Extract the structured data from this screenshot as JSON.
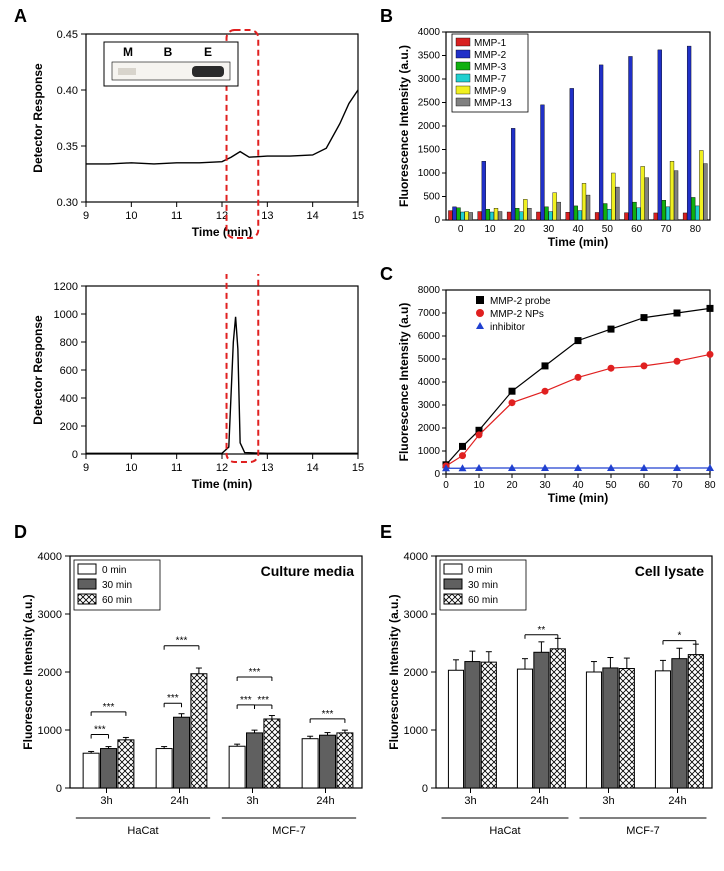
{
  "labels": {
    "A": "A",
    "B": "B",
    "C": "C",
    "D": "D",
    "E": "E"
  },
  "panelA_top": {
    "type": "line",
    "xlabel": "Time (min)",
    "ylabel": "Detector Response",
    "xlim": [
      9,
      15
    ],
    "xtick_step": 1,
    "ylim": [
      0.3,
      0.45
    ],
    "ytick_step": 0.05,
    "line_color": "#000000",
    "data_x": [
      9,
      9.5,
      10,
      10.5,
      11,
      11.5,
      12,
      12.2,
      12.4,
      12.6,
      13,
      13.5,
      14,
      14.3,
      14.6,
      14.8,
      15
    ],
    "data_y": [
      0.334,
      0.334,
      0.335,
      0.334,
      0.335,
      0.335,
      0.336,
      0.34,
      0.345,
      0.34,
      0.341,
      0.341,
      0.342,
      0.348,
      0.37,
      0.388,
      0.4
    ],
    "inset_letters": [
      "M",
      "B",
      "E"
    ],
    "highlight_x": [
      12.1,
      12.8
    ],
    "highlight_color": "#e02020"
  },
  "panelA_bottom": {
    "type": "line",
    "xlabel": "Time (min)",
    "ylabel": "Detector Response",
    "xlim": [
      9,
      15
    ],
    "xtick_step": 1,
    "ylim": [
      0,
      1200
    ],
    "ytick_step": 200,
    "line_color": "#000000",
    "data_x": [
      9,
      10,
      11,
      12,
      12.15,
      12.25,
      12.3,
      12.35,
      12.4,
      12.5,
      13,
      14,
      15
    ],
    "data_y": [
      5,
      5,
      5,
      5,
      50,
      800,
      980,
      750,
      80,
      10,
      5,
      5,
      5
    ]
  },
  "panelB": {
    "type": "bar",
    "xlabel": "Time (min)",
    "ylabel": "Fluorescence Intensity (a.u.)",
    "xlim_categories": [
      0,
      10,
      20,
      30,
      40,
      50,
      60,
      70,
      80
    ],
    "ylim": [
      0,
      4000
    ],
    "ytick_step": 500,
    "series": [
      {
        "name": "MMP-1",
        "color": "#d82020",
        "values": [
          200,
          180,
          170,
          170,
          165,
          160,
          155,
          150,
          150
        ]
      },
      {
        "name": "MMP-2",
        "color": "#2030c8",
        "values": [
          280,
          1250,
          1950,
          2450,
          2800,
          3300,
          3480,
          3620,
          3700
        ]
      },
      {
        "name": "MMP-3",
        "color": "#10b010",
        "values": [
          260,
          230,
          250,
          280,
          300,
          350,
          380,
          420,
          480
        ]
      },
      {
        "name": "MMP-7",
        "color": "#20d0d0",
        "values": [
          170,
          170,
          175,
          180,
          200,
          230,
          260,
          280,
          300
        ]
      },
      {
        "name": "MMP-9",
        "color": "#f0f020",
        "values": [
          180,
          250,
          440,
          580,
          780,
          1000,
          1140,
          1250,
          1480
        ]
      },
      {
        "name": "MMP-13",
        "color": "#808080",
        "values": [
          160,
          180,
          250,
          380,
          530,
          700,
          900,
          1050,
          1200
        ]
      }
    ],
    "legend_border": "#000000"
  },
  "panelC": {
    "type": "scatter",
    "xlabel": "Time (min)",
    "ylabel": "Fluorescence Intensity (a.u)",
    "xlim": [
      0,
      80
    ],
    "xtick_step": 10,
    "ylim": [
      0,
      8000
    ],
    "ytick_step": 1000,
    "series": [
      {
        "name": "MMP-2 probe",
        "marker": "square",
        "color": "#000000",
        "line_color": "#000000",
        "x": [
          0,
          5,
          10,
          20,
          30,
          40,
          50,
          60,
          70,
          80
        ],
        "y": [
          400,
          1200,
          1900,
          3600,
          4700,
          5800,
          6300,
          6800,
          7000,
          7200
        ]
      },
      {
        "name": "MMP-2 NPs",
        "marker": "circle",
        "color": "#e02020",
        "line_color": "#e02020",
        "x": [
          0,
          5,
          10,
          20,
          30,
          40,
          50,
          60,
          70,
          80
        ],
        "y": [
          350,
          800,
          1700,
          3100,
          3600,
          4200,
          4600,
          4700,
          4900,
          5200
        ]
      },
      {
        "name": "inhibitor",
        "marker": "triangle",
        "color": "#2040d0",
        "line_color": "#2040d0",
        "x": [
          0,
          5,
          10,
          20,
          30,
          40,
          50,
          60,
          70,
          80
        ],
        "y": [
          250,
          250,
          260,
          260,
          260,
          260,
          260,
          260,
          260,
          260
        ]
      }
    ]
  },
  "panelD": {
    "type": "bar",
    "title": "Culture media",
    "xlabel_groups": [
      "3h",
      "24h",
      "3h",
      "24h"
    ],
    "cell_lines": [
      "HaCat",
      "MCF-7"
    ],
    "ylabel": "Fluorescnce Intensity (a.u.)",
    "ylim": [
      0,
      4000
    ],
    "ytick_step": 1000,
    "legend": [
      "0 min",
      "30 min",
      "60 min"
    ],
    "fills": [
      "#ffffff",
      "#606060",
      "crosshatch"
    ],
    "data": {
      "HaCat_3h": [
        600,
        680,
        830
      ],
      "HaCat_24h": [
        680,
        1220,
        1970
      ],
      "MCF7_3h": [
        720,
        950,
        1190
      ],
      "MCF7_24h": [
        850,
        910,
        950
      ]
    },
    "significance": [
      {
        "group": "HaCat_3h",
        "pairs": [
          [
            "***",
            0,
            1
          ],
          [
            "***",
            0,
            2
          ]
        ]
      },
      {
        "group": "HaCat_24h",
        "pairs": [
          [
            "***",
            0,
            1
          ],
          [
            "***",
            0,
            2
          ]
        ]
      },
      {
        "group": "MCF7_3h",
        "pairs": [
          [
            "***",
            1,
            2
          ],
          [
            "***",
            0,
            1
          ],
          [
            "***",
            0,
            2
          ]
        ]
      },
      {
        "group": "MCF7_24h",
        "pairs": [
          [
            "***",
            0,
            2
          ]
        ]
      }
    ]
  },
  "panelE": {
    "type": "bar",
    "title": "Cell lysate",
    "xlabel_groups": [
      "3h",
      "24h",
      "3h",
      "24h"
    ],
    "cell_lines": [
      "HaCat",
      "MCF-7"
    ],
    "ylabel": "Fluorescnce Intensity (a.u.)",
    "ylim": [
      0,
      4000
    ],
    "ytick_step": 1000,
    "legend": [
      "0 min",
      "30 min",
      "60 min"
    ],
    "fills": [
      "#ffffff",
      "#606060",
      "crosshatch"
    ],
    "data": {
      "HaCat_3h": [
        2030,
        2180,
        2170
      ],
      "HaCat_24h": [
        2050,
        2340,
        2400
      ],
      "MCF7_3h": [
        2000,
        2070,
        2060
      ],
      "MCF7_24h": [
        2020,
        2230,
        2300
      ]
    },
    "significance": [
      {
        "group": "HaCat_24h",
        "pairs": [
          [
            "**",
            0,
            2
          ]
        ]
      },
      {
        "group": "MCF7_24h",
        "pairs": [
          [
            "*",
            0,
            2
          ]
        ]
      }
    ]
  },
  "colors": {
    "axis": "#000000",
    "bg": "#ffffff"
  }
}
